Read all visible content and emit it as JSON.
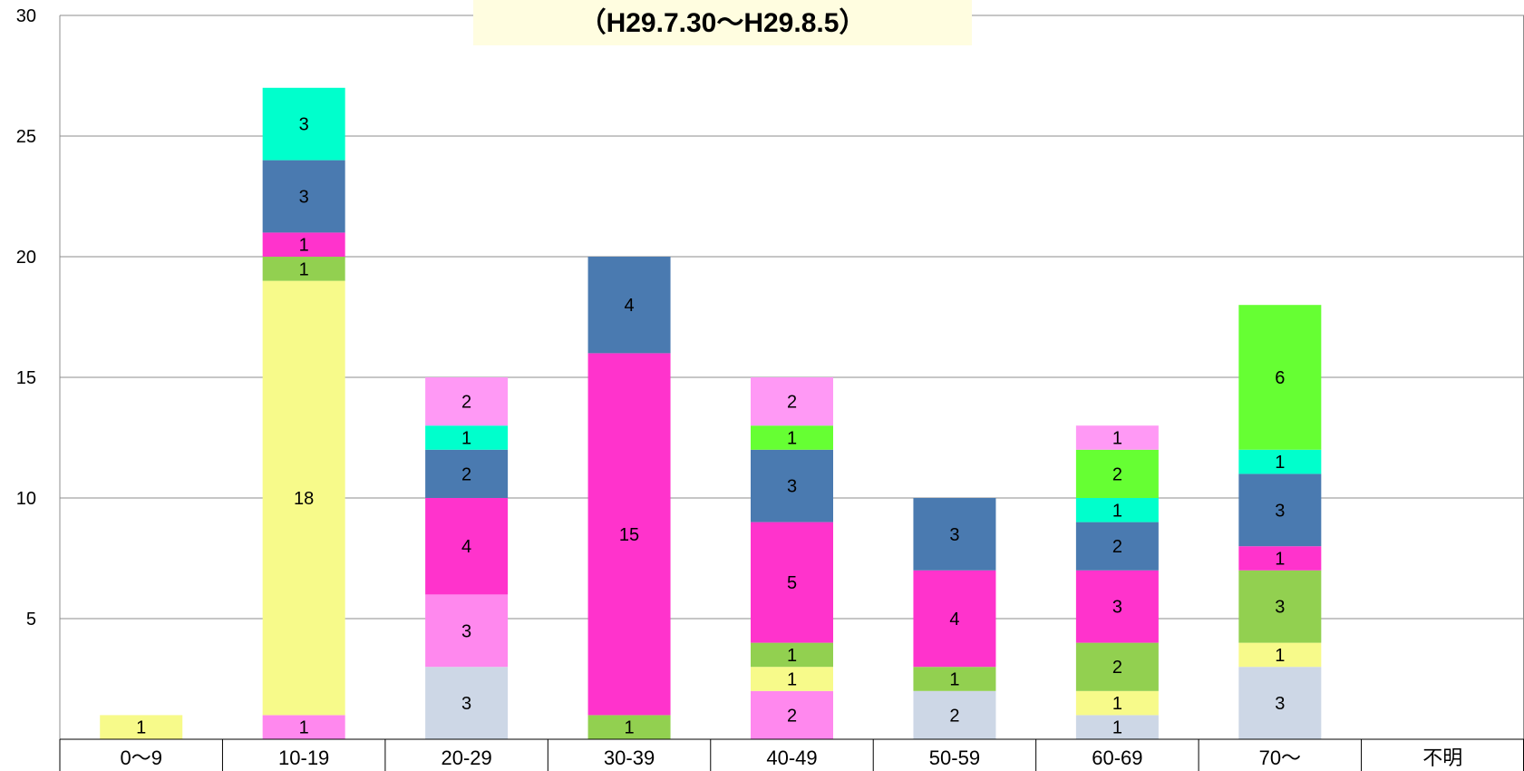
{
  "chart_data": {
    "type": "bar",
    "stacked": true,
    "title": "（H29.7.30〜H29.8.5）",
    "xlabel": "",
    "ylabel": "",
    "ylim": [
      0,
      30
    ],
    "yticks": [
      5,
      10,
      15,
      20,
      25,
      30
    ],
    "grid": true,
    "legend": "none",
    "categories": [
      "0〜9",
      "10-19",
      "20-29",
      "30-39",
      "40-49",
      "50-59",
      "60-69",
      "70〜",
      "不明"
    ],
    "series": [
      {
        "color": "#cdd7e6",
        "values": [
          0,
          0,
          3,
          0,
          0,
          2,
          1,
          3,
          0
        ]
      },
      {
        "color": "#ff88ee",
        "values": [
          0,
          1,
          0,
          0,
          2,
          0,
          0,
          0,
          0
        ]
      },
      {
        "color": "#f7fa8a",
        "values": [
          1,
          18,
          0,
          0,
          1,
          0,
          1,
          1,
          0
        ]
      },
      {
        "color": "#92d050",
        "values": [
          0,
          1,
          0,
          1,
          1,
          1,
          2,
          3,
          0
        ]
      },
      {
        "color": "#ff88ee",
        "values": [
          0,
          0,
          3,
          0,
          0,
          0,
          0,
          0,
          0
        ]
      },
      {
        "color": "#ff33cc",
        "values": [
          0,
          1,
          4,
          15,
          5,
          4,
          3,
          1,
          0
        ]
      },
      {
        "color": "#4a7ab0",
        "values": [
          0,
          3,
          2,
          4,
          3,
          3,
          2,
          3,
          0
        ]
      },
      {
        "color": "#00ffcc",
        "values": [
          0,
          3,
          1,
          0,
          0,
          0,
          1,
          1,
          0
        ]
      },
      {
        "color": "#66ff33",
        "values": [
          0,
          0,
          0,
          0,
          1,
          0,
          2,
          6,
          0
        ]
      },
      {
        "color": "#ff99f5",
        "values": [
          0,
          0,
          2,
          0,
          2,
          0,
          1,
          0,
          0
        ]
      }
    ]
  }
}
